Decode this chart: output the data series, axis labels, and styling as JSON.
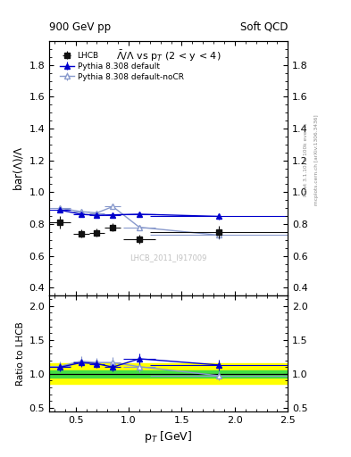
{
  "title_top": "900 GeV pp",
  "title_top_right": "Soft QCD",
  "plot_title": "$\\bar{\\Lambda}/\\Lambda$ vs p$_T$ (2 < y < 4)",
  "ylabel_main": "bar($\\Lambda$)/$\\Lambda$",
  "ylabel_ratio": "Ratio to LHCB",
  "xlabel": "p$_T$ [GeV]",
  "right_label1": "Rivet 3.1.10, ≥ 100k events",
  "right_label2": "mcplots.cern.ch [arXiv:1306.3436]",
  "watermark": "LHCB_2011_I917009",
  "xlim": [
    0.25,
    2.5
  ],
  "ylim_main": [
    0.35,
    1.95
  ],
  "ylim_ratio": [
    0.45,
    2.15
  ],
  "yticks_main": [
    0.4,
    0.6,
    0.8,
    1.0,
    1.2,
    1.4,
    1.6,
    1.8
  ],
  "yticks_ratio": [
    0.5,
    1.0,
    1.5,
    2.0
  ],
  "lhcb_x": [
    0.35,
    0.55,
    0.7,
    0.85,
    1.1,
    1.85
  ],
  "lhcb_y": [
    0.81,
    0.74,
    0.745,
    0.78,
    0.705,
    0.75
  ],
  "lhcb_xerr": [
    0.1,
    0.075,
    0.075,
    0.075,
    0.15,
    0.65
  ],
  "lhcb_yerr": [
    0.04,
    0.025,
    0.025,
    0.025,
    0.03,
    0.04
  ],
  "py_default_x": [
    0.35,
    0.55,
    0.7,
    0.85,
    1.1,
    1.85
  ],
  "py_default_y": [
    0.888,
    0.862,
    0.855,
    0.858,
    0.862,
    0.848
  ],
  "py_default_xerr": [
    0.1,
    0.075,
    0.075,
    0.075,
    0.15,
    0.65
  ],
  "py_default_yerr": [
    0.01,
    0.008,
    0.008,
    0.008,
    0.01,
    0.02
  ],
  "py_nocr_x": [
    0.35,
    0.55,
    0.7,
    0.85,
    1.1,
    1.85
  ],
  "py_nocr_y": [
    0.9,
    0.878,
    0.87,
    0.91,
    0.78,
    0.73
  ],
  "py_nocr_xerr": [
    0.1,
    0.075,
    0.075,
    0.075,
    0.15,
    0.65
  ],
  "py_nocr_yerr": [
    0.012,
    0.009,
    0.009,
    0.012,
    0.015,
    0.025
  ],
  "ratio_default_y": [
    1.097,
    1.165,
    1.149,
    1.1,
    1.222,
    1.131
  ],
  "ratio_default_yerr": [
    0.065,
    0.06,
    0.058,
    0.058,
    0.075,
    0.08
  ],
  "ratio_nocr_y": [
    1.111,
    1.187,
    1.168,
    1.167,
    1.106,
    0.973
  ],
  "ratio_nocr_yerr": [
    0.075,
    0.068,
    0.065,
    0.075,
    0.08,
    0.06
  ],
  "color_lhcb": "#111111",
  "color_default": "#0000cc",
  "color_nocr": "#8899cc",
  "green_band_half": 0.05,
  "yellow_band_half": 0.15,
  "legend_labels": [
    "LHCB",
    "Pythia 8.308 default",
    "Pythia 8.308 default-noCR"
  ]
}
